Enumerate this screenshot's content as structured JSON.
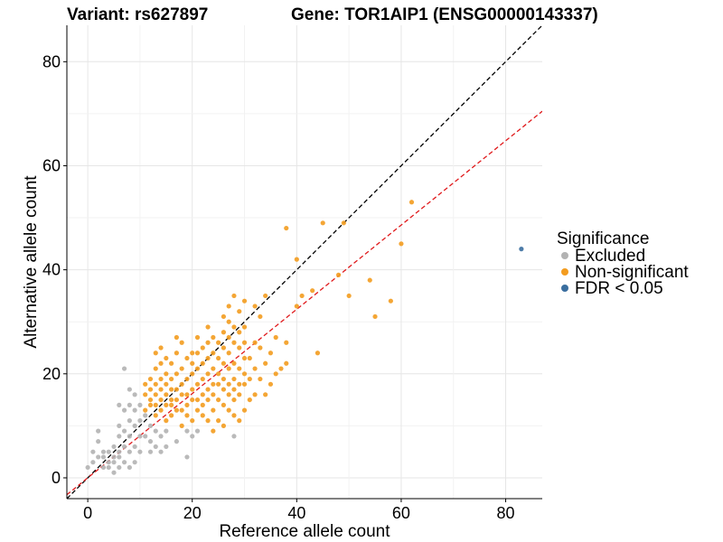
{
  "chart_data": {
    "type": "scatter",
    "title_left": "Variant: rs627897",
    "title_right": "Gene: TOR1AIP1 (ENSG00000143337)",
    "xlabel": "Reference allele count",
    "ylabel": "Alternative allele count",
    "xlim": [
      -4,
      87
    ],
    "ylim": [
      -4,
      87
    ],
    "x_ticks": [
      0,
      20,
      40,
      60,
      80
    ],
    "y_ticks": [
      0,
      20,
      40,
      60,
      80
    ],
    "grid": true,
    "legend": {
      "title": "Significance",
      "placement": "right",
      "entries": [
        {
          "key": "excluded",
          "label": "Excluded",
          "color": "#b3b3b3"
        },
        {
          "key": "nonsig",
          "label": "Non-significant",
          "color": "#f39c1f"
        },
        {
          "key": "fdr",
          "label": "FDR < 0.05",
          "color": "#3a6e9f"
        }
      ]
    },
    "reference_lines": [
      {
        "name": "identity",
        "slope": 1.0,
        "intercept": 0,
        "color": "#000000",
        "style": "dashed"
      },
      {
        "name": "fit",
        "slope": 0.81,
        "intercept": 0,
        "color": "#e0191b",
        "style": "dashed"
      }
    ],
    "series": [
      {
        "key": "excluded",
        "points": [
          [
            0,
            2
          ],
          [
            1,
            3
          ],
          [
            1,
            5
          ],
          [
            2,
            4
          ],
          [
            2,
            7
          ],
          [
            2,
            9
          ],
          [
            3,
            2
          ],
          [
            3,
            4
          ],
          [
            3,
            5
          ],
          [
            4,
            2
          ],
          [
            4,
            3
          ],
          [
            4,
            5
          ],
          [
            5,
            1
          ],
          [
            5,
            3
          ],
          [
            5,
            4
          ],
          [
            5,
            6
          ],
          [
            6,
            2
          ],
          [
            6,
            4
          ],
          [
            6,
            5
          ],
          [
            6,
            8
          ],
          [
            6,
            10
          ],
          [
            6,
            14
          ],
          [
            7,
            3
          ],
          [
            7,
            6
          ],
          [
            7,
            9
          ],
          [
            7,
            13
          ],
          [
            8,
            2
          ],
          [
            8,
            5
          ],
          [
            8,
            8
          ],
          [
            8,
            11
          ],
          [
            8,
            14
          ],
          [
            8,
            17
          ],
          [
            7,
            21
          ],
          [
            9,
            3
          ],
          [
            9,
            6
          ],
          [
            9,
            10
          ],
          [
            9,
            13
          ],
          [
            9,
            16
          ],
          [
            10,
            5
          ],
          [
            10,
            8
          ],
          [
            10,
            11
          ],
          [
            10,
            14
          ],
          [
            11,
            8
          ],
          [
            11,
            12
          ],
          [
            12,
            5
          ],
          [
            12,
            7
          ],
          [
            12,
            10
          ],
          [
            13,
            6
          ],
          [
            13,
            9
          ],
          [
            14,
            5
          ],
          [
            14,
            8
          ],
          [
            15,
            6
          ],
          [
            15,
            9
          ],
          [
            17,
            7
          ],
          [
            19,
            4
          ],
          [
            19,
            9
          ],
          [
            20,
            8
          ],
          [
            21,
            9
          ],
          [
            28,
            8
          ]
        ]
      },
      {
        "key": "nonsig",
        "points": [
          [
            11,
            13
          ],
          [
            11,
            16
          ],
          [
            11,
            18
          ],
          [
            12,
            14
          ],
          [
            12,
            15
          ],
          [
            12,
            17
          ],
          [
            12,
            19
          ],
          [
            13,
            12
          ],
          [
            13,
            14
          ],
          [
            13,
            16
          ],
          [
            13,
            18
          ],
          [
            13,
            21
          ],
          [
            13,
            24
          ],
          [
            14,
            13
          ],
          [
            14,
            15
          ],
          [
            14,
            17
          ],
          [
            14,
            19
          ],
          [
            14,
            22
          ],
          [
            14,
            25
          ],
          [
            15,
            11
          ],
          [
            15,
            14
          ],
          [
            15,
            16
          ],
          [
            15,
            18
          ],
          [
            15,
            20
          ],
          [
            15,
            23
          ],
          [
            16,
            12
          ],
          [
            16,
            14
          ],
          [
            16,
            15
          ],
          [
            16,
            17
          ],
          [
            16,
            19
          ],
          [
            16,
            22
          ],
          [
            17,
            13
          ],
          [
            17,
            15
          ],
          [
            17,
            17
          ],
          [
            17,
            20
          ],
          [
            17,
            24
          ],
          [
            17,
            27
          ],
          [
            18,
            10
          ],
          [
            18,
            13
          ],
          [
            18,
            16
          ],
          [
            18,
            18
          ],
          [
            18,
            21
          ],
          [
            18,
            26
          ],
          [
            19,
            12
          ],
          [
            19,
            14
          ],
          [
            19,
            16
          ],
          [
            19,
            19
          ],
          [
            19,
            23
          ],
          [
            20,
            11
          ],
          [
            20,
            15
          ],
          [
            20,
            17
          ],
          [
            20,
            20
          ],
          [
            20,
            22
          ],
          [
            20,
            24
          ],
          [
            21,
            13
          ],
          [
            21,
            15
          ],
          [
            21,
            18
          ],
          [
            21,
            21
          ],
          [
            21,
            24
          ],
          [
            21,
            27
          ],
          [
            22,
            12
          ],
          [
            22,
            14
          ],
          [
            22,
            16
          ],
          [
            22,
            19
          ],
          [
            22,
            22
          ],
          [
            22,
            25
          ],
          [
            23,
            11
          ],
          [
            23,
            15
          ],
          [
            23,
            17
          ],
          [
            23,
            20
          ],
          [
            23,
            23
          ],
          [
            23,
            26
          ],
          [
            23,
            29
          ],
          [
            24,
            9
          ],
          [
            24,
            13
          ],
          [
            24,
            16
          ],
          [
            24,
            18
          ],
          [
            24,
            21
          ],
          [
            24,
            24
          ],
          [
            24,
            27
          ],
          [
            25,
            11
          ],
          [
            25,
            15
          ],
          [
            25,
            18
          ],
          [
            25,
            20
          ],
          [
            25,
            23
          ],
          [
            25,
            26
          ],
          [
            26,
            10
          ],
          [
            26,
            14
          ],
          [
            26,
            17
          ],
          [
            26,
            19
          ],
          [
            26,
            22
          ],
          [
            26,
            25
          ],
          [
            26,
            28
          ],
          [
            26,
            31
          ],
          [
            27,
            13
          ],
          [
            27,
            16
          ],
          [
            27,
            18
          ],
          [
            27,
            21
          ],
          [
            27,
            24
          ],
          [
            27,
            27
          ],
          [
            27,
            30
          ],
          [
            27,
            33
          ],
          [
            28,
            12
          ],
          [
            28,
            15
          ],
          [
            28,
            17
          ],
          [
            28,
            19
          ],
          [
            28,
            22
          ],
          [
            28,
            26
          ],
          [
            28,
            29
          ],
          [
            28,
            35
          ],
          [
            29,
            11
          ],
          [
            29,
            16
          ],
          [
            29,
            18
          ],
          [
            29,
            21
          ],
          [
            29,
            25
          ],
          [
            29,
            28
          ],
          [
            29,
            32
          ],
          [
            30,
            13
          ],
          [
            30,
            18
          ],
          [
            30,
            20
          ],
          [
            30,
            23
          ],
          [
            30,
            26
          ],
          [
            30,
            29
          ],
          [
            30,
            34
          ],
          [
            31,
            15
          ],
          [
            31,
            19
          ],
          [
            31,
            23
          ],
          [
            32,
            16
          ],
          [
            32,
            21
          ],
          [
            32,
            26
          ],
          [
            32,
            33
          ],
          [
            33,
            19
          ],
          [
            33,
            25
          ],
          [
            33,
            31
          ],
          [
            34,
            16
          ],
          [
            34,
            22
          ],
          [
            34,
            35
          ],
          [
            35,
            18
          ],
          [
            35,
            24
          ],
          [
            36,
            20
          ],
          [
            36,
            27
          ],
          [
            37,
            21
          ],
          [
            38,
            22
          ],
          [
            38,
            26
          ],
          [
            38,
            48
          ],
          [
            40,
            42
          ],
          [
            40,
            33
          ],
          [
            41,
            35
          ],
          [
            43,
            36
          ],
          [
            44,
            24
          ],
          [
            45,
            49
          ],
          [
            48,
            39
          ],
          [
            49,
            49
          ],
          [
            50,
            35
          ],
          [
            54,
            38
          ],
          [
            55,
            31
          ],
          [
            58,
            34
          ],
          [
            60,
            45
          ],
          [
            62,
            53
          ]
        ]
      },
      {
        "key": "fdr",
        "points": [
          [
            83,
            44
          ]
        ]
      }
    ]
  }
}
